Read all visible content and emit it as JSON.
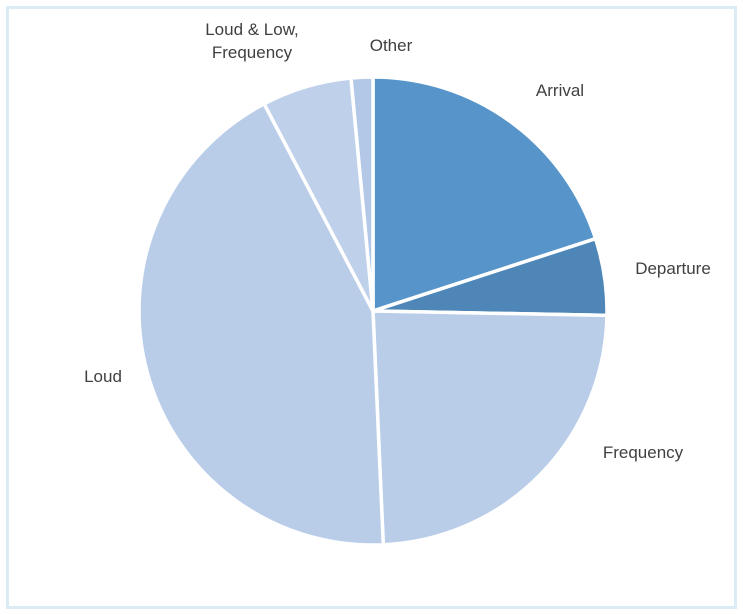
{
  "chart_data": {
    "type": "pie",
    "title": "",
    "start_angle_deg": 0,
    "direction": "clockwise",
    "slices": [
      {
        "label": "Arrival",
        "value": 20.0,
        "color": "#5694c9"
      },
      {
        "label": "Departure",
        "value": 5.3,
        "color": "#4e86b8"
      },
      {
        "label": "Frequency",
        "value": 24.0,
        "color": "#b9cde9"
      },
      {
        "label": "Loud",
        "value": 43.0,
        "color": "#b9cde9"
      },
      {
        "label": "Loud & Low,\nFrequency",
        "value": 6.2,
        "color": "#bfd1ea"
      },
      {
        "label": "Other",
        "value": 1.5,
        "color": "#b3c8e6"
      }
    ],
    "slice_separator_color": "#ffffff",
    "legend": "none"
  },
  "frame": {
    "border_color": "#dcecf4"
  }
}
